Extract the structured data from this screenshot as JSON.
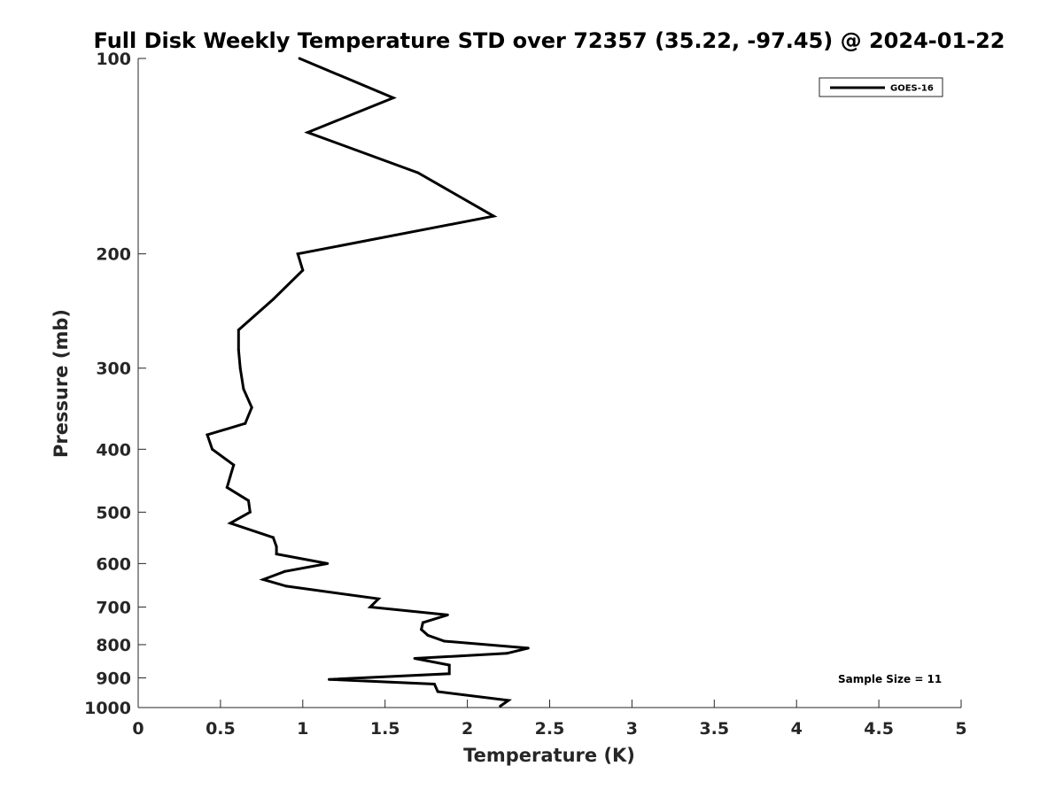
{
  "chart_data": {
    "type": "line",
    "title": "Full Disk Weekly Temperature STD over 72357 (35.22, -97.45) @ 2024-01-22",
    "xlabel": "Temperature (K)",
    "ylabel": "Pressure (mb)",
    "xlim": [
      0,
      5
    ],
    "ylim": [
      1000,
      100
    ],
    "y_scale": "log",
    "y_reversed": true,
    "x_ticks": [
      0,
      0.5,
      1,
      1.5,
      2,
      2.5,
      3,
      3.5,
      4,
      4.5,
      5
    ],
    "x_tick_labels": [
      "0",
      "0.5",
      "1",
      "1.5",
      "2",
      "2.5",
      "3",
      "3.5",
      "4",
      "4.5",
      "5"
    ],
    "y_ticks": [
      100,
      200,
      300,
      400,
      500,
      600,
      700,
      800,
      900,
      1000
    ],
    "y_tick_labels": [
      "100",
      "200",
      "300",
      "400",
      "500",
      "600",
      "700",
      "800",
      "900",
      "1000"
    ],
    "grid": false,
    "legend_position": "top-right",
    "annotation": "Sample Size = 11",
    "series": [
      {
        "name": "GOES-16",
        "color": "#000000",
        "x": [
          0.98,
          1.55,
          1.03,
          1.7,
          2.16,
          0.97,
          1.0,
          0.82,
          0.61,
          0.61,
          0.62,
          0.64,
          0.69,
          0.65,
          0.42,
          0.45,
          0.58,
          0.56,
          0.54,
          0.67,
          0.68,
          0.56,
          0.82,
          0.84,
          0.84,
          1.15,
          0.89,
          0.76,
          0.9,
          1.46,
          1.41,
          1.88,
          1.73,
          1.72,
          1.76,
          1.86,
          2.37,
          2.24,
          1.68,
          1.89,
          1.89,
          1.16,
          1.8,
          1.82,
          2.25,
          2.2
        ],
        "y": [
          100,
          115,
          130,
          150,
          175,
          200,
          212,
          235,
          262,
          281,
          300,
          323,
          345,
          365,
          380,
          400,
          423,
          440,
          458,
          480,
          500,
          520,
          547,
          565,
          580,
          600,
          617,
          635,
          650,
          680,
          700,
          720,
          740,
          758,
          774,
          790,
          810,
          825,
          840,
          860,
          887,
          905,
          920,
          945,
          975,
          995
        ]
      }
    ]
  }
}
